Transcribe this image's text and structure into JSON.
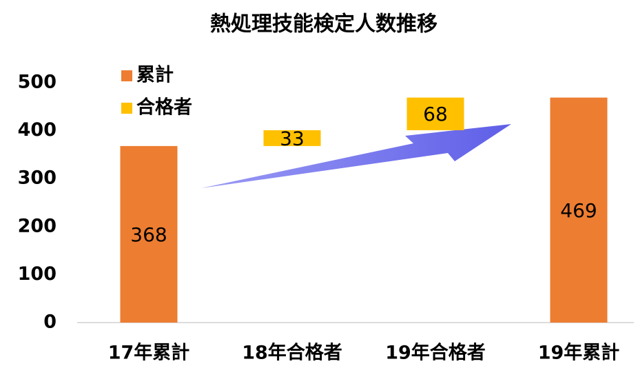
{
  "chart_data": {
    "type": "waterfall",
    "title": "熱処理技能検定人数推移",
    "categories": [
      "17年累計",
      "18年合格者",
      "19年合格者",
      "19年累計"
    ],
    "series": [
      {
        "name": "累計",
        "color": "#ED7D31",
        "values": [
          368,
          null,
          null,
          469
        ]
      },
      {
        "name": "合格者",
        "color": "#FFC000",
        "values": [
          null,
          33,
          68,
          null
        ]
      }
    ],
    "ylim": [
      0,
      500
    ],
    "yticks": [
      0,
      100,
      200,
      300,
      400,
      500
    ],
    "grid": false,
    "legend": "top-left"
  }
}
